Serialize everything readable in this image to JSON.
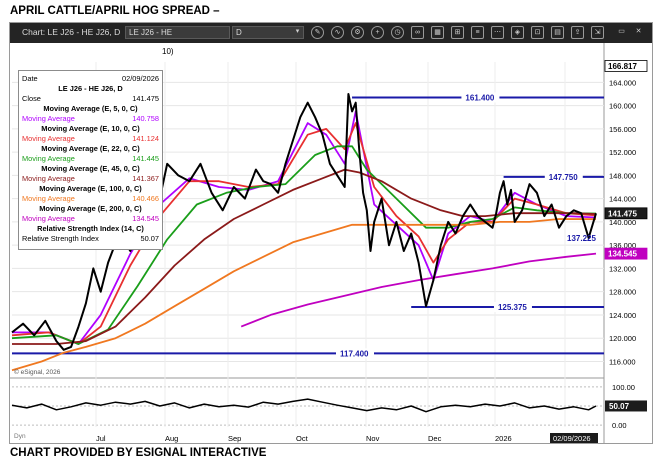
{
  "headline": "APRIL CATTLE/APRIL  HOG SPREAD –",
  "footer": "CHART PROVIDED BY ESIGNAL INTERACTIVE",
  "toolbar": {
    "title": "Chart: LE J26 - HE J26, D",
    "symbol_value": "LE J26 - HE",
    "interval_value": "D",
    "partial_label": "10)"
  },
  "info": {
    "date_label": "Date",
    "date_value": "02/09/2026",
    "symbol": "LE J26 - HE J26, D",
    "close_label": "Close",
    "close_value": "141.475",
    "indicators": [
      {
        "header": "Moving Average (E, 5, 0, C)",
        "label": "Moving Average",
        "value": "140.758",
        "color": "#b000ff"
      },
      {
        "header": "Moving Average (E, 10, 0, C)",
        "label": "Moving Average",
        "value": "141.124",
        "color": "#e83030"
      },
      {
        "header": "Moving Average (E, 22, 0, C)",
        "label": "Moving Average",
        "value": "141.445",
        "color": "#1a9e1a"
      },
      {
        "header": "Moving Average (E, 45, 0, C)",
        "label": "Moving Average",
        "value": "141.367",
        "color": "#8b1a1a"
      },
      {
        "header": "Moving Average (E, 100, 0, C)",
        "label": "Moving Average",
        "value": "140.466",
        "color": "#f07820"
      },
      {
        "header": "Moving Average (E, 200, 0, C)",
        "label": "Moving Average",
        "value": "134.545",
        "color": "#c000c0"
      }
    ],
    "rsi_header": "Relative Strength Index (14, C)",
    "rsi_label": "Relative Strength Index",
    "rsi_value": "50.07"
  },
  "chart_data": {
    "type": "line",
    "x_ticks": [
      "Jul",
      "Aug",
      "Sep",
      "Oct",
      "Nov",
      "Dec",
      "2026",
      "Feb"
    ],
    "ylim": [
      113.5,
      167.5
    ],
    "y_ticks": [
      "116.000",
      "120.000",
      "124.000",
      "128.000",
      "132.000",
      "136.000",
      "140.000",
      "144.000",
      "148.000",
      "152.000",
      "156.000",
      "160.000",
      "164.000"
    ],
    "rsi_ticks": [
      "100.00",
      "50.00",
      "0.00"
    ],
    "rsi_lim": [
      -5,
      105
    ],
    "watermark": "© eSignal, 2026",
    "dyn_label": "Dyn",
    "date_marker": "02/09/2026",
    "price_tags": [
      {
        "value": 166.817,
        "label": "166.817",
        "kind": "plain"
      },
      {
        "value": 141.475,
        "label": "141.475",
        "kind": "dark"
      },
      {
        "value": 134.545,
        "label": "134.545",
        "kind": "magenta"
      }
    ],
    "rsi_tag": "50.07",
    "levels": [
      {
        "value": 161.4,
        "label": "161.400",
        "x_start": 92
      },
      {
        "value": 147.75,
        "label": "147.750",
        "x_start": 133
      },
      {
        "value": 125.375,
        "label": "125.375",
        "x_start": 108
      },
      {
        "value": 117.4,
        "label": "117.400",
        "x_start": 0
      }
    ],
    "annotations": [
      {
        "value": 137.225,
        "label": "137.225"
      }
    ],
    "price_series": {
      "name": "LE J26 - HE J26",
      "x": [
        0,
        3,
        6,
        9,
        12,
        14,
        16,
        18,
        20,
        22,
        24,
        26,
        29,
        32,
        35,
        38,
        40,
        42,
        45,
        48,
        51,
        54,
        57,
        60,
        63,
        66,
        68,
        70,
        72,
        74,
        76,
        78,
        80,
        82,
        84,
        86,
        88,
        90,
        91,
        92,
        93,
        94,
        95,
        96,
        97,
        98,
        100,
        102,
        104,
        106,
        108,
        110,
        112,
        114,
        116,
        118,
        120,
        122,
        124,
        126,
        128,
        130,
        131,
        132,
        133,
        134,
        135,
        136,
        138,
        140,
        142,
        144,
        146,
        148,
        150,
        152,
        154,
        156,
        158
      ],
      "values": [
        121.0,
        122.5,
        120.5,
        123.0,
        119.5,
        118.0,
        118.5,
        122.0,
        126.0,
        132.0,
        128.0,
        133.0,
        138.0,
        135.0,
        140.0,
        146.0,
        144.0,
        150.0,
        148.0,
        147.0,
        150.0,
        145.0,
        142.0,
        146.0,
        144.0,
        149.0,
        147.0,
        146.5,
        145.0,
        150.0,
        154.0,
        158.0,
        160.5,
        158.0,
        155.0,
        150.0,
        148.0,
        146.0,
        162.0,
        159.0,
        160.5,
        152.0,
        145.0,
        142.0,
        135.0,
        140.0,
        144.0,
        136.0,
        140.0,
        135.0,
        138.0,
        133.0,
        125.5,
        130.0,
        136.0,
        140.0,
        138.0,
        141.0,
        143.0,
        141.0,
        140.0,
        139.0,
        141.5,
        145.0,
        147.0,
        143.0,
        145.5,
        140.0,
        142.0,
        146.5,
        145.0,
        141.0,
        143.0,
        139.0,
        141.0,
        142.0,
        141.5,
        137.225,
        141.475
      ]
    },
    "ma_series": [
      {
        "name": "MA 5",
        "color": "#b000ff",
        "x": [
          0,
          10,
          18,
          24,
          32,
          40,
          48,
          56,
          64,
          72,
          80,
          85,
          90,
          93,
          98,
          104,
          110,
          114,
          118,
          124,
          130,
          136,
          142,
          150,
          158
        ],
        "values": [
          121.0,
          121.0,
          119.0,
          124.0,
          134.5,
          143.0,
          147.5,
          146.0,
          145.5,
          147.0,
          157.0,
          155.0,
          150.0,
          159.0,
          143.0,
          139.5,
          136.0,
          130.0,
          138.0,
          141.0,
          140.0,
          145.0,
          143.0,
          141.0,
          140.758
        ]
      },
      {
        "name": "MA 10",
        "color": "#e83030",
        "x": [
          0,
          10,
          18,
          24,
          32,
          40,
          48,
          56,
          64,
          72,
          80,
          85,
          90,
          93,
          98,
          104,
          110,
          114,
          118,
          124,
          130,
          136,
          142,
          150,
          158
        ],
        "values": [
          120.5,
          121.0,
          119.0,
          122.0,
          132.5,
          141.0,
          147.0,
          147.0,
          146.0,
          146.5,
          155.0,
          156.0,
          152.5,
          157.0,
          146.0,
          141.0,
          137.5,
          133.0,
          137.0,
          140.0,
          140.0,
          144.0,
          143.0,
          141.5,
          141.124
        ]
      },
      {
        "name": "MA 22",
        "color": "#1a9e1a",
        "x": [
          0,
          12,
          18,
          26,
          34,
          42,
          50,
          58,
          66,
          74,
          82,
          88,
          92,
          96,
          104,
          112,
          118,
          124,
          130,
          136,
          142,
          150,
          158
        ],
        "values": [
          120.0,
          120.5,
          119.0,
          121.5,
          129.0,
          137.0,
          143.0,
          145.0,
          146.0,
          146.5,
          151.5,
          153.0,
          153.0,
          149.0,
          144.0,
          139.0,
          139.0,
          140.0,
          140.5,
          142.5,
          142.0,
          141.5,
          141.445
        ]
      },
      {
        "name": "MA 45",
        "color": "#8b1a1a",
        "x": [
          0,
          12,
          20,
          28,
          36,
          44,
          52,
          60,
          68,
          76,
          84,
          90,
          94,
          100,
          108,
          116,
          122,
          128,
          136,
          144,
          152,
          158
        ],
        "values": [
          119.0,
          119.0,
          119.5,
          122.0,
          127.0,
          132.5,
          137.0,
          140.5,
          143.0,
          145.5,
          147.5,
          149.0,
          148.5,
          147.0,
          144.0,
          142.0,
          141.0,
          141.0,
          141.5,
          141.5,
          141.5,
          141.367
        ]
      },
      {
        "name": "MA 100",
        "color": "#f07820",
        "x": [
          0,
          8,
          14,
          20,
          28,
          36,
          44,
          52,
          60,
          68,
          76,
          84,
          92,
          100,
          108,
          116,
          124,
          132,
          140,
          148,
          158
        ],
        "values": [
          114.5,
          116.0,
          117.5,
          118.5,
          120.0,
          122.5,
          125.5,
          128.5,
          131.5,
          134.0,
          136.5,
          138.0,
          139.5,
          139.5,
          139.5,
          139.5,
          139.5,
          140.0,
          140.0,
          140.5,
          140.466
        ]
      },
      {
        "name": "MA 200",
        "color": "#c000c0",
        "x": [
          62,
          70,
          80,
          90,
          100,
          110,
          120,
          130,
          140,
          150,
          158
        ],
        "values": [
          122.0,
          124.0,
          125.8,
          127.3,
          128.8,
          130.0,
          131.0,
          132.0,
          133.2,
          134.0,
          134.545
        ]
      }
    ],
    "rsi_series": {
      "x": [
        0,
        4,
        8,
        12,
        16,
        20,
        24,
        28,
        32,
        36,
        40,
        44,
        48,
        52,
        56,
        60,
        64,
        68,
        72,
        76,
        80,
        84,
        88,
        92,
        96,
        100,
        104,
        108,
        112,
        116,
        120,
        124,
        128,
        132,
        136,
        140,
        144,
        148,
        152,
        156,
        158
      ],
      "values": [
        52,
        45,
        55,
        40,
        48,
        58,
        52,
        60,
        55,
        62,
        50,
        58,
        45,
        55,
        48,
        52,
        47,
        60,
        55,
        62,
        68,
        60,
        52,
        45,
        38,
        45,
        40,
        50,
        35,
        48,
        52,
        48,
        55,
        50,
        58,
        45,
        50,
        42,
        48,
        40,
        50.07
      ]
    }
  }
}
